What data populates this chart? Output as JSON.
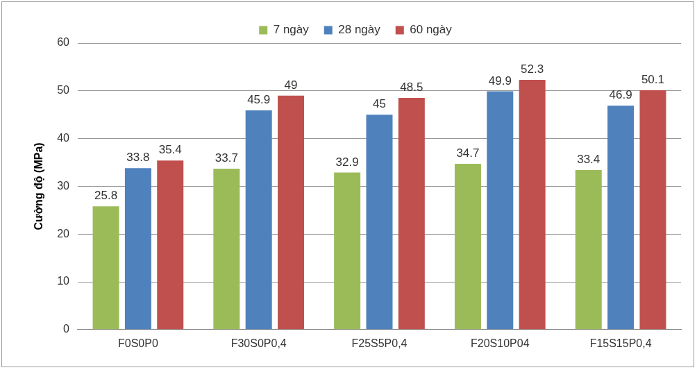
{
  "chart_data": {
    "type": "bar",
    "ylabel": "Cường độ (MPa)",
    "categories": [
      "F0S0P0",
      "F30S0P0,4",
      "F25S5P0,4",
      "F20S10P04",
      "F15S15P0,4"
    ],
    "series": [
      {
        "name": "7 ngày",
        "color": "#9bbb59",
        "values": [
          25.8,
          33.7,
          32.9,
          34.7,
          33.4
        ]
      },
      {
        "name": "28 ngày",
        "color": "#4f81bd",
        "values": [
          33.8,
          45.9,
          45,
          49.9,
          46.9
        ]
      },
      {
        "name": "60 ngày",
        "color": "#c0504d",
        "values": [
          35.4,
          49,
          48.5,
          52.3,
          50.1
        ]
      }
    ],
    "ylim": [
      0,
      60
    ],
    "yticks": [
      0,
      10,
      20,
      30,
      40,
      50,
      60
    ],
    "grid": "y",
    "legend": "top",
    "data_labels": true
  }
}
